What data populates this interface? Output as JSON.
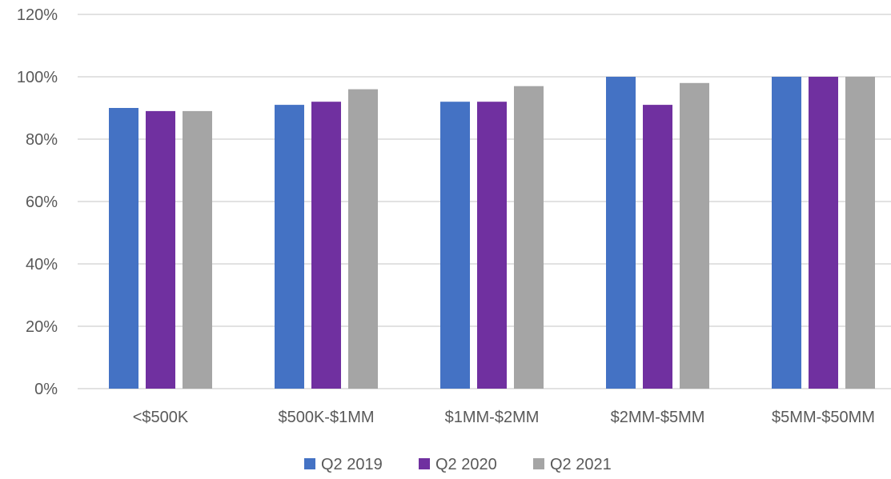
{
  "chart_data": {
    "type": "bar",
    "categories": [
      "<$500K",
      "$500K-$1MM",
      "$1MM-$2MM",
      "$2MM-$5MM",
      "$5MM-$50MM"
    ],
    "series": [
      {
        "name": "Q2 2019",
        "color": "#4472C4",
        "values": [
          90,
          91,
          92,
          100,
          100
        ]
      },
      {
        "name": "Q2 2020",
        "color": "#7030A0",
        "values": [
          89,
          92,
          92,
          91,
          100
        ]
      },
      {
        "name": "Q2 2021",
        "color": "#A5A5A5",
        "values": [
          89,
          96,
          97,
          98,
          100
        ]
      }
    ],
    "ylim": [
      0,
      120
    ],
    "yticks": [
      0,
      20,
      40,
      60,
      80,
      100,
      120
    ],
    "ytick_labels": [
      "0%",
      "20%",
      "40%",
      "60%",
      "80%",
      "100%",
      "120%"
    ],
    "grid": true,
    "gridline_color": "#D9D9D9",
    "legend": "bottom-center",
    "title": "",
    "xlabel": "",
    "ylabel": ""
  }
}
